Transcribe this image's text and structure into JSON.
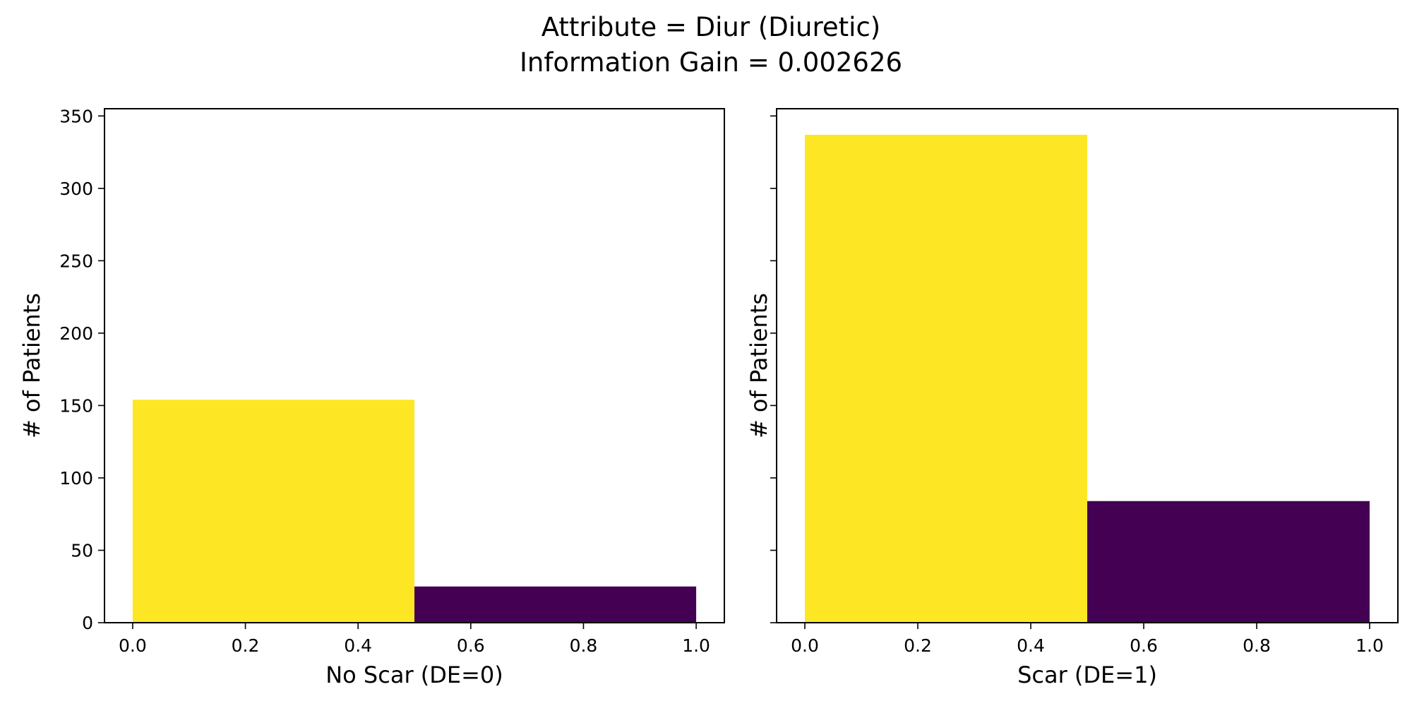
{
  "figure": {
    "title_lines": [
      "Attribute = Diur (Diuretic)",
      "Information Gain = 0.002626"
    ],
    "shared_y": true
  },
  "chart_data": [
    {
      "type": "bar",
      "title": "",
      "xlabel": "No Scar (DE=0)",
      "ylabel": "# of Patients",
      "xlim": [
        -0.05,
        1.05
      ],
      "ylim": [
        0,
        355
      ],
      "xticks": [
        0.0,
        0.2,
        0.4,
        0.6,
        0.8,
        1.0
      ],
      "xtick_labels": [
        "0.0",
        "0.2",
        "0.4",
        "0.6",
        "0.8",
        "1.0"
      ],
      "yticks": [
        0,
        50,
        100,
        150,
        200,
        250,
        300,
        350
      ],
      "ytick_labels": [
        "0",
        "50",
        "100",
        "150",
        "200",
        "250",
        "300",
        "350"
      ],
      "show_ytick_labels": true,
      "grid": false,
      "bars": [
        {
          "x_start": 0.0,
          "x_end": 0.5,
          "value": 154,
          "color": "#fde725"
        },
        {
          "x_start": 0.5,
          "x_end": 1.0,
          "value": 25,
          "color": "#440154"
        }
      ]
    },
    {
      "type": "bar",
      "title": "",
      "xlabel": "Scar (DE=1)",
      "ylabel": "# of Patients",
      "xlim": [
        -0.05,
        1.05
      ],
      "ylim": [
        0,
        355
      ],
      "xticks": [
        0.0,
        0.2,
        0.4,
        0.6,
        0.8,
        1.0
      ],
      "xtick_labels": [
        "0.0",
        "0.2",
        "0.4",
        "0.6",
        "0.8",
        "1.0"
      ],
      "yticks": [
        0,
        50,
        100,
        150,
        200,
        250,
        300,
        350
      ],
      "ytick_labels": [
        "0",
        "50",
        "100",
        "150",
        "200",
        "250",
        "300",
        "350"
      ],
      "show_ytick_labels": false,
      "grid": false,
      "bars": [
        {
          "x_start": 0.0,
          "x_end": 0.5,
          "value": 337,
          "color": "#fde725"
        },
        {
          "x_start": 0.5,
          "x_end": 1.0,
          "value": 84,
          "color": "#440154"
        }
      ]
    }
  ]
}
